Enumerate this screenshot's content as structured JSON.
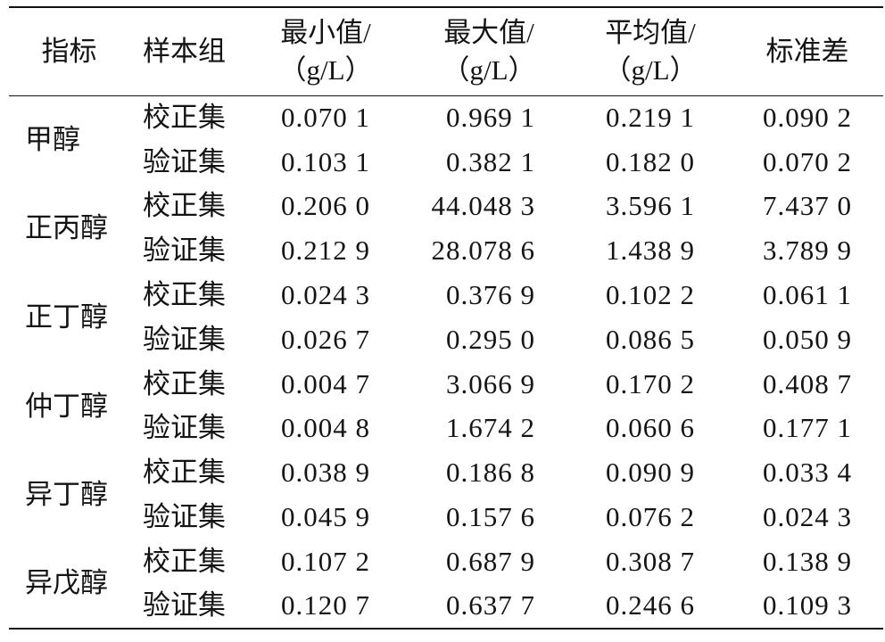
{
  "table": {
    "headers": {
      "indicator": "指标",
      "group": "样本组",
      "min": [
        "最小值/",
        "（g/L）"
      ],
      "max": [
        "最大值/",
        "（g/L）"
      ],
      "mean": [
        "平均值/",
        "（g/L）"
      ],
      "sd": "标准差"
    },
    "rows": [
      {
        "indicator": "甲醇",
        "groups": [
          {
            "group": "校正集",
            "min": "0.070 1",
            "max": "0.969 1",
            "mean": "0.219 1",
            "sd": "0.090 2"
          },
          {
            "group": "验证集",
            "min": "0.103 1",
            "max": "0.382 1",
            "mean": "0.182 0",
            "sd": "0.070 2"
          }
        ]
      },
      {
        "indicator": "正丙醇",
        "groups": [
          {
            "group": "校正集",
            "min": "0.206 0",
            "max": "44.048 3",
            "mean": "3.596 1",
            "sd": "7.437 0"
          },
          {
            "group": "验证集",
            "min": "0.212 9",
            "max": "28.078 6",
            "mean": "1.438 9",
            "sd": "3.789 9"
          }
        ]
      },
      {
        "indicator": "正丁醇",
        "groups": [
          {
            "group": "校正集",
            "min": "0.024 3",
            "max": "0.376 9",
            "mean": "0.102 2",
            "sd": "0.061 1"
          },
          {
            "group": "验证集",
            "min": "0.026 7",
            "max": "0.295 0",
            "mean": "0.086 5",
            "sd": "0.050 9"
          }
        ]
      },
      {
        "indicator": "仲丁醇",
        "groups": [
          {
            "group": "校正集",
            "min": "0.004 7",
            "max": "3.066 9",
            "mean": "0.170 2",
            "sd": "0.408 7"
          },
          {
            "group": "验证集",
            "min": "0.004 8",
            "max": "1.674 2",
            "mean": "0.060 6",
            "sd": "0.177 1"
          }
        ]
      },
      {
        "indicator": "异丁醇",
        "groups": [
          {
            "group": "校正集",
            "min": "0.038 9",
            "max": "0.186 8",
            "mean": "0.090 9",
            "sd": "0.033 4"
          },
          {
            "group": "验证集",
            "min": "0.045 9",
            "max": "0.157 6",
            "mean": "0.076 2",
            "sd": "0.024 3"
          }
        ]
      },
      {
        "indicator": "异戊醇",
        "groups": [
          {
            "group": "校正集",
            "min": "0.107 2",
            "max": "0.687 9",
            "mean": "0.308 7",
            "sd": "0.138 9"
          },
          {
            "group": "验证集",
            "min": "0.120 7",
            "max": "0.637 7",
            "mean": "0.246 6",
            "sd": "0.109 3"
          }
        ]
      }
    ]
  }
}
